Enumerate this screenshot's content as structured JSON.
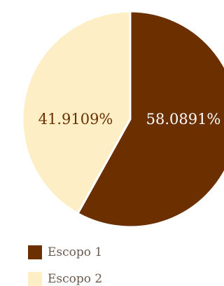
{
  "chart_data": {
    "type": "pie",
    "title": "",
    "categories": [
      "Escopo 1",
      "Escopo 2"
    ],
    "values": [
      58.0891,
      41.9109
    ],
    "labels": [
      "58.0891%",
      "41.9109%"
    ],
    "colors": [
      "#6b2f00",
      "#fdeec6"
    ],
    "label_colors": [
      "#ffffff",
      "#6b2f00"
    ],
    "legend_position": "bottom-left"
  }
}
